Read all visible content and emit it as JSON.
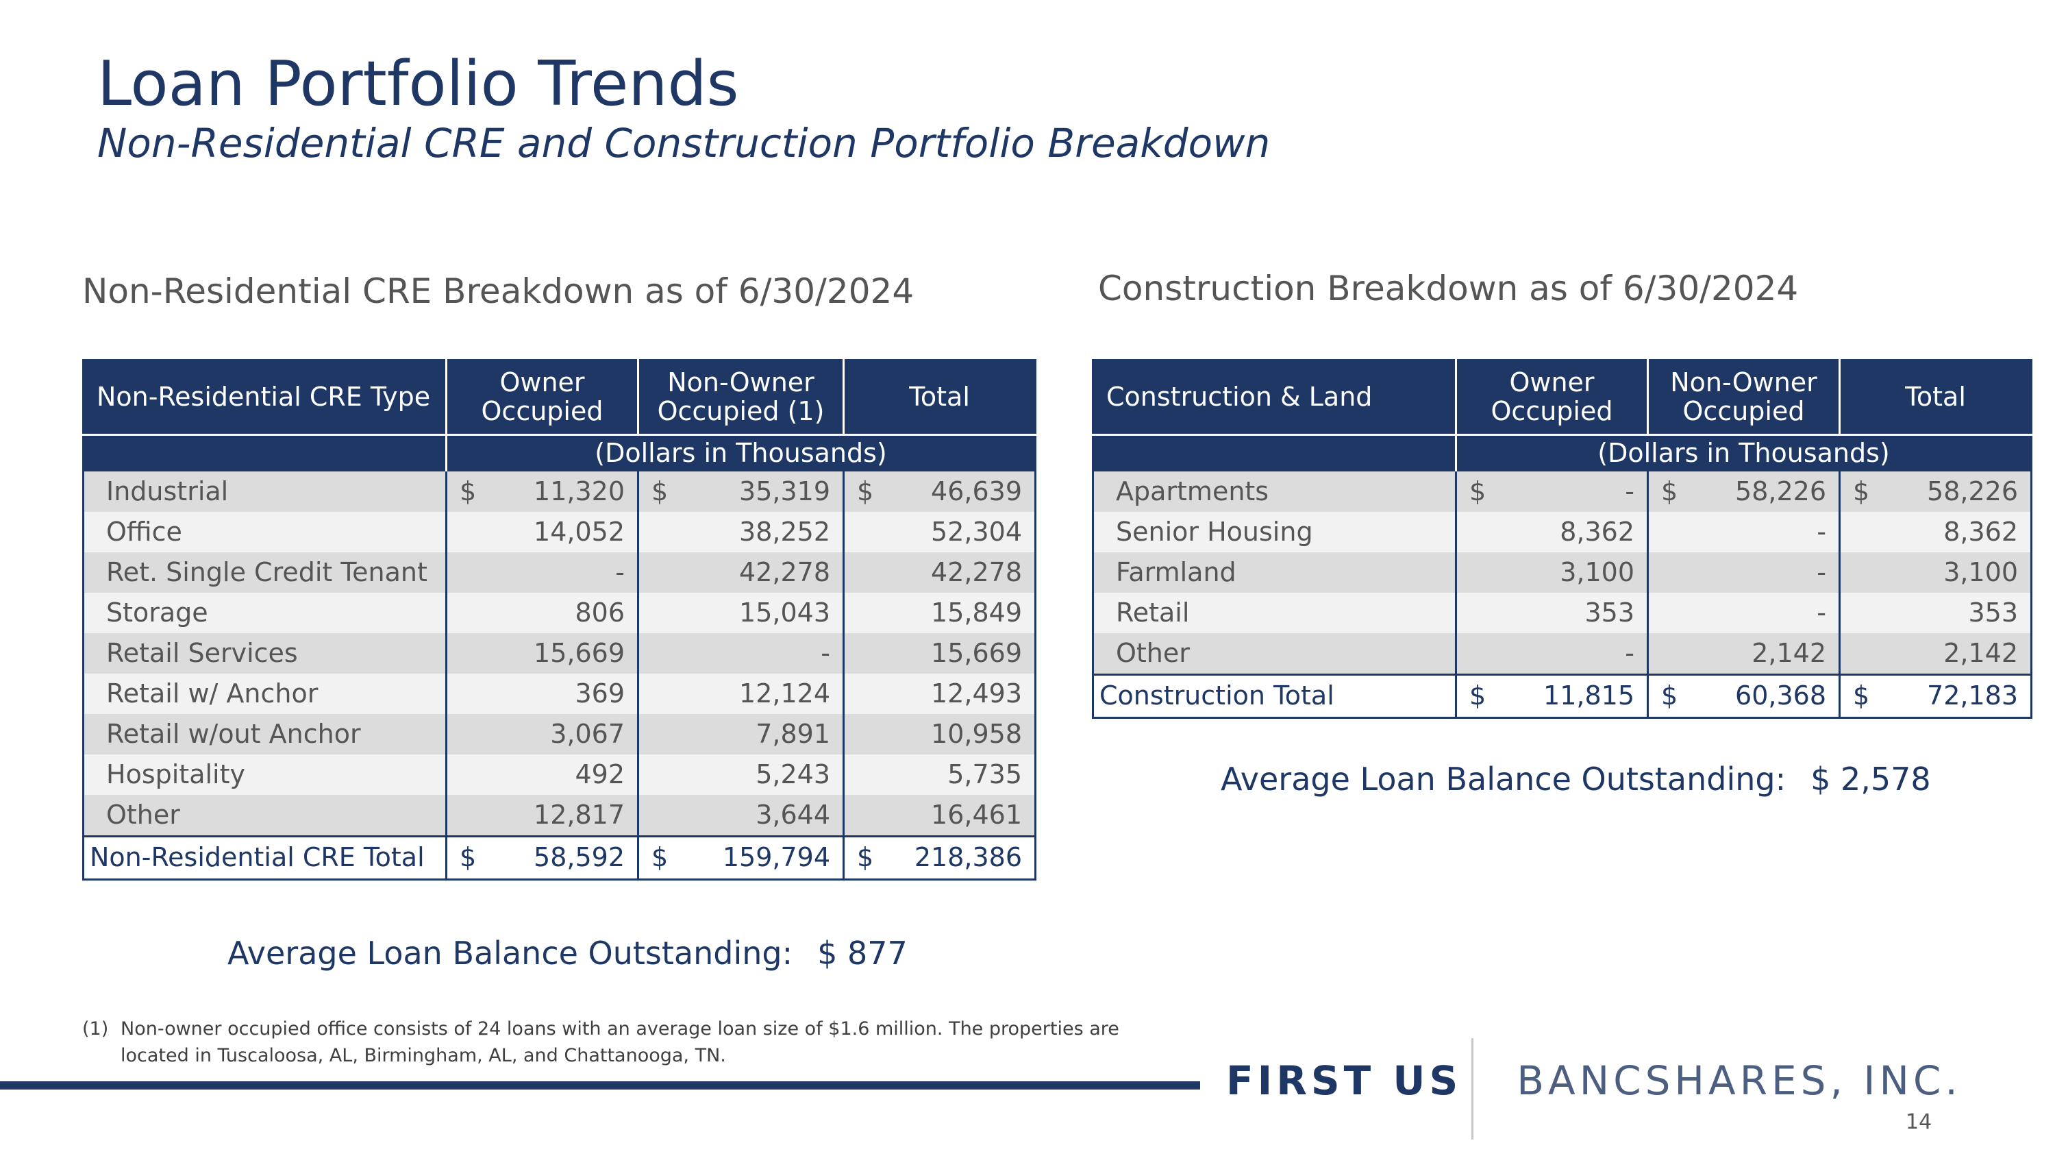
{
  "header": {
    "title": "Loan Portfolio Trends",
    "subtitle": "Non-Residential CRE and Construction Portfolio Breakdown"
  },
  "cre": {
    "heading": "Non-Residential CRE Breakdown as of 6/30/2024",
    "columns": {
      "type": "Non-Residential CRE Type",
      "owner": "Owner Occupied",
      "non_owner": "Non-Owner Occupied (1)",
      "total": "Total"
    },
    "units": "(Dollars in Thousands)",
    "rows": [
      {
        "label": "Industrial",
        "owner": "11,320",
        "non_owner": "35,319",
        "total": "46,639"
      },
      {
        "label": "Office",
        "owner": "14,052",
        "non_owner": "38,252",
        "total": "52,304"
      },
      {
        "label": "Ret. Single Credit Tenant",
        "owner": "-",
        "non_owner": "42,278",
        "total": "42,278"
      },
      {
        "label": "Storage",
        "owner": "806",
        "non_owner": "15,043",
        "total": "15,849"
      },
      {
        "label": "Retail Services",
        "owner": "15,669",
        "non_owner": "-",
        "total": "15,669"
      },
      {
        "label": "Retail w/ Anchor",
        "owner": "369",
        "non_owner": "12,124",
        "total": "12,493"
      },
      {
        "label": "Retail w/out Anchor",
        "owner": "3,067",
        "non_owner": "7,891",
        "total": "10,958"
      },
      {
        "label": "Hospitality",
        "owner": "492",
        "non_owner": "5,243",
        "total": "5,735"
      },
      {
        "label": "Other",
        "owner": "12,817",
        "non_owner": "3,644",
        "total": "16,461"
      }
    ],
    "total": {
      "label": "Non-Residential CRE Total",
      "owner": "58,592",
      "non_owner": "159,794",
      "total": "218,386"
    },
    "currency": "$",
    "avg_label": "Average Loan Balance Outstanding:",
    "avg_value": "$ 877"
  },
  "construction": {
    "heading": "Construction Breakdown as of 6/30/2024",
    "columns": {
      "type": "Construction & Land",
      "owner": "Owner Occupied",
      "non_owner": "Non-Owner Occupied",
      "total": "Total"
    },
    "units": "(Dollars in Thousands)",
    "rows": [
      {
        "label": "Apartments",
        "owner": "-",
        "non_owner": "58,226",
        "total": "58,226"
      },
      {
        "label": "Senior Housing",
        "owner": "8,362",
        "non_owner": "-",
        "total": "8,362"
      },
      {
        "label": "Farmland",
        "owner": "3,100",
        "non_owner": "-",
        "total": "3,100"
      },
      {
        "label": "Retail",
        "owner": "353",
        "non_owner": "-",
        "total": "353"
      },
      {
        "label": "Other",
        "owner": "-",
        "non_owner": "2,142",
        "total": "2,142"
      }
    ],
    "total": {
      "label": "Construction Total",
      "owner": "11,815",
      "non_owner": "60,368",
      "total": "72,183"
    },
    "currency": "$",
    "avg_label": "Average Loan Balance Outstanding:",
    "avg_value": "$ 2,578"
  },
  "footnote": {
    "mark": "(1)",
    "text": "Non-owner occupied office consists of 24 loans with an average loan size of $1.6 million. The properties are located in Tuscaloosa, AL, Birmingham, AL, and Chattanooga, TN."
  },
  "brand": {
    "strong": "FIRST US",
    "light": "BANCSHARES, INC."
  },
  "page_number": "14",
  "colors": {
    "navy": "#1e3765",
    "row_shade": "#dcdcdc",
    "row_light": "#f2f2f2",
    "text_gray": "#555555"
  }
}
